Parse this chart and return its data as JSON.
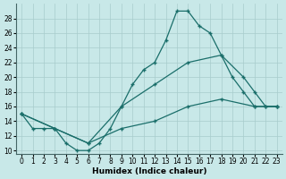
{
  "xlabel": "Humidex (Indice chaleur)",
  "bg_color": "#c8e8e8",
  "line_color": "#1a6e6a",
  "grid_color": "#a8cccc",
  "xlim": [
    -0.5,
    23.5
  ],
  "ylim": [
    9.5,
    30
  ],
  "yticks": [
    10,
    12,
    14,
    16,
    18,
    20,
    22,
    24,
    26,
    28
  ],
  "xticks": [
    0,
    1,
    2,
    3,
    4,
    5,
    6,
    7,
    8,
    9,
    10,
    11,
    12,
    13,
    14,
    15,
    16,
    17,
    18,
    19,
    20,
    21,
    22,
    23
  ],
  "line1_x": [
    0,
    1,
    2,
    3,
    4,
    5,
    6,
    7,
    8,
    9,
    10,
    11,
    12,
    13,
    14,
    15,
    16,
    17,
    18,
    19,
    20,
    21,
    22,
    23
  ],
  "line1_y": [
    15,
    13,
    13,
    13,
    11,
    10,
    10,
    11,
    13,
    16,
    19,
    21,
    22,
    25,
    29,
    29,
    27,
    26,
    23,
    20,
    18,
    16,
    16,
    16
  ],
  "line2_x": [
    0,
    3,
    6,
    9,
    12,
    15,
    18,
    20,
    21,
    22,
    23
  ],
  "line2_y": [
    15,
    13,
    11,
    16,
    19,
    22,
    23,
    20,
    18,
    16,
    16
  ],
  "line3_x": [
    0,
    3,
    6,
    9,
    12,
    15,
    18,
    21,
    23
  ],
  "line3_y": [
    15,
    13,
    11,
    13,
    14,
    16,
    17,
    16,
    16
  ]
}
